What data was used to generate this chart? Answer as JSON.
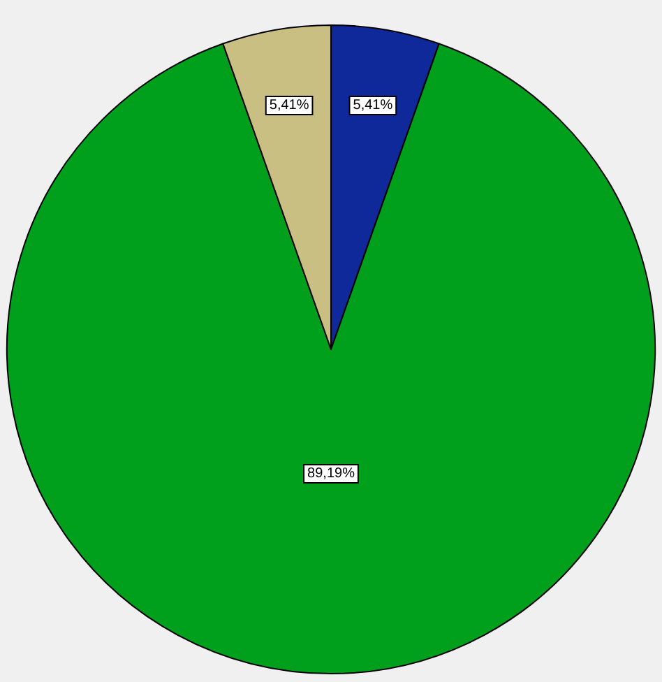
{
  "chart_data": {
    "type": "pie",
    "categories": [
      null,
      null,
      null
    ],
    "values": [
      5.41,
      89.19,
      5.41
    ],
    "colors": [
      "#10299a",
      "#00a01c",
      "#c9bf82"
    ],
    "value_labels": [
      "5,41%",
      "89,19%",
      "5,41%"
    ]
  }
}
